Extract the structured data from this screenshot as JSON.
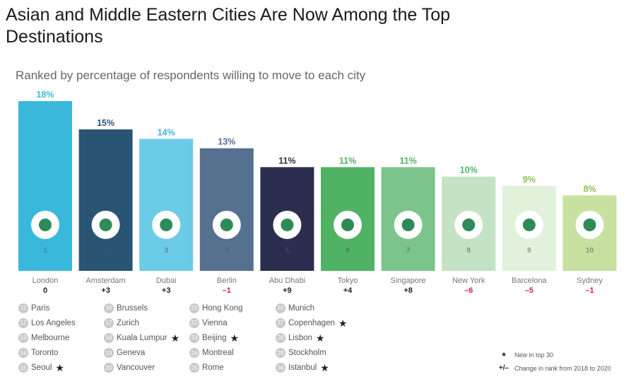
{
  "title": "Asian and Middle Eastern Cities Are Now Among the Top Destinations",
  "subtitle": "Ranked by percentage of respondents willing to move to each city",
  "chart_data": {
    "type": "bar",
    "categories": [
      "London",
      "Amsterdam",
      "Dubai",
      "Berlin",
      "Abu Dhabi",
      "Tokyo",
      "Singapore",
      "New York",
      "Barcelona",
      "Sydney"
    ],
    "values": [
      18,
      15,
      14,
      13,
      11,
      11,
      11,
      10,
      9,
      8
    ],
    "value_labels": [
      "18%",
      "15%",
      "14%",
      "13%",
      "11%",
      "11%",
      "11%",
      "10%",
      "9%",
      "8%"
    ],
    "ranks": [
      "1",
      "2",
      "3",
      "4",
      "5",
      "6",
      "7",
      "8",
      "9",
      "10"
    ],
    "changes": [
      "0",
      "+3",
      "+3",
      "–1",
      "+9",
      "+4",
      "+8",
      "–6",
      "–5",
      "–1"
    ],
    "bar_colors": [
      "#3ab8dc",
      "#2a5473",
      "#6ccbe6",
      "#56708f",
      "#2c2e4f",
      "#50b264",
      "#7cc48c",
      "#c4e2c4",
      "#e2f1dc",
      "#c8e0a0"
    ],
    "label_colors": [
      "#3ab8dc",
      "#2a5473",
      "#3ab8dc",
      "#56708f",
      "#2c2e4f",
      "#50b264",
      "#50b264",
      "#50b264",
      "#8fc050",
      "#8fc050"
    ],
    "change_colors": [
      "#222222",
      "#222222",
      "#222222",
      "#d0204a",
      "#222222",
      "#222222",
      "#222222",
      "#d0204a",
      "#d0204a",
      "#d0204a"
    ],
    "icons": [
      "big-ben-icon",
      "windmill-icon",
      "burj-al-arab-icon",
      "brandenburg-gate-icon",
      "grand-mosque-icon",
      "tokyo-tower-icon",
      "merlion-icon",
      "empire-state-icon",
      "sagrada-familia-icon",
      "opera-house-icon"
    ],
    "ylim": [
      0,
      18
    ]
  },
  "more_cities": [
    [
      {
        "rank": "11",
        "name": "Paris",
        "new": false
      },
      {
        "rank": "12",
        "name": "Los Angeles",
        "new": false
      },
      {
        "rank": "13",
        "name": "Melbourne",
        "new": false
      },
      {
        "rank": "14",
        "name": "Toronto",
        "new": false
      },
      {
        "rank": "15",
        "name": "Seoul",
        "new": true
      }
    ],
    [
      {
        "rank": "16",
        "name": "Brussels",
        "new": false
      },
      {
        "rank": "17",
        "name": "Zurich",
        "new": false
      },
      {
        "rank": "18",
        "name": "Kuala Lumpur",
        "new": true
      },
      {
        "rank": "19",
        "name": "Geneva",
        "new": false
      },
      {
        "rank": "20",
        "name": "Vancouver",
        "new": false
      }
    ],
    [
      {
        "rank": "21",
        "name": "Hong Kong",
        "new": false
      },
      {
        "rank": "22",
        "name": "Vienna",
        "new": false
      },
      {
        "rank": "23",
        "name": "Beijing",
        "new": true
      },
      {
        "rank": "24",
        "name": "Montreal",
        "new": false
      },
      {
        "rank": "25",
        "name": "Rome",
        "new": false
      }
    ],
    [
      {
        "rank": "26",
        "name": "Munich",
        "new": false
      },
      {
        "rank": "27",
        "name": "Copenhagen",
        "new": true
      },
      {
        "rank": "28",
        "name": "Lisbon",
        "new": true
      },
      {
        "rank": "29",
        "name": "Stockholm",
        "new": false
      },
      {
        "rank": "30",
        "name": "Istanbul",
        "new": true
      }
    ]
  ],
  "legend": {
    "star_label": "New in top 30",
    "change_symbol": "+/–",
    "change_label": "Change in rank from 2018 to 2020"
  }
}
